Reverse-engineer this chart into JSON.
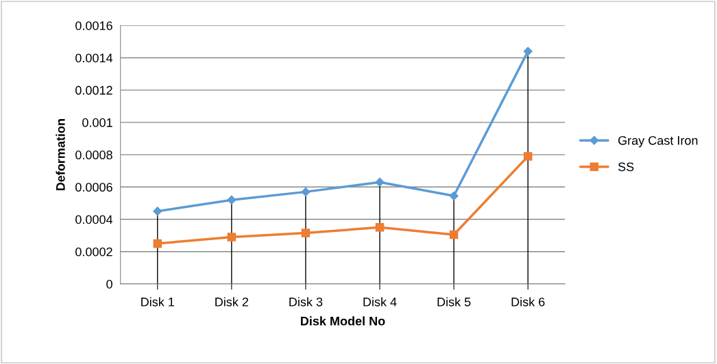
{
  "chart_data": {
    "type": "line",
    "xlabel": "Disk Model No",
    "ylabel": "Deformation",
    "categories": [
      "Disk 1",
      "Disk 2",
      "Disk 3",
      "Disk 4",
      "Disk 5",
      "Disk 6"
    ],
    "series": [
      {
        "name": "Gray Cast Iron",
        "color": "#5b9bd5",
        "marker": "diamond",
        "values": [
          0.00045,
          0.00052,
          0.00057,
          0.00063,
          0.000545,
          0.00144
        ],
        "errors": [
          [
            0.00045,
            0
          ],
          [
            0.00052,
            0
          ],
          [
            0.00057,
            0
          ],
          [
            0.00063,
            0
          ],
          [
            0.000545,
            0
          ],
          [
            0.00144,
            0
          ]
        ]
      },
      {
        "name": "SS",
        "color": "#ed7d31",
        "marker": "square",
        "values": [
          0.00025,
          0.00029,
          0.000315,
          0.00035,
          0.000305,
          0.00079
        ]
      }
    ],
    "ylim": [
      0,
      0.0016
    ],
    "yticks": [
      0,
      0.0002,
      0.0004,
      0.0006,
      0.0008,
      0.001,
      0.0012,
      0.0014,
      0.0016
    ],
    "grid": "y",
    "legend": "right",
    "line_style": "solid"
  }
}
